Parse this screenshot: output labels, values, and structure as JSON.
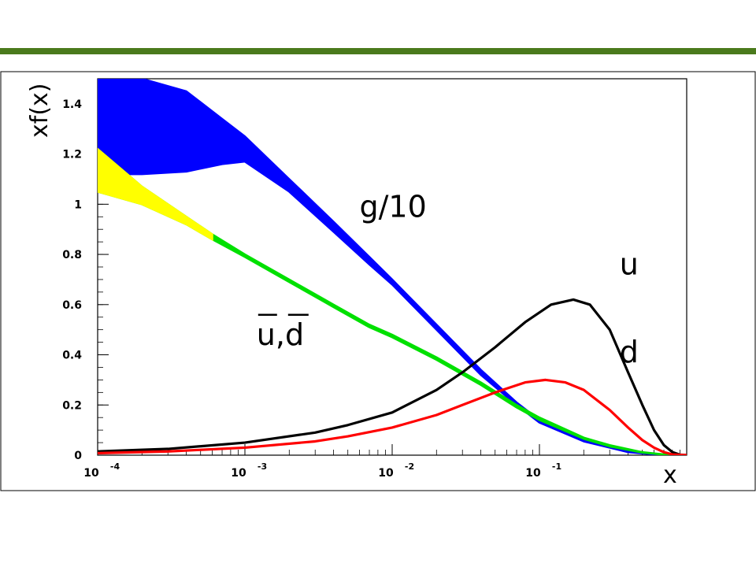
{
  "slide": {
    "header_bar_color": "#4a7a1c"
  },
  "chart_data": {
    "type": "line",
    "x_scale": "log",
    "xlim": [
      0.0001,
      1
    ],
    "ylim": [
      0,
      1.5
    ],
    "grid": false,
    "xlabel": "x",
    "ylabel": "xf(x)",
    "x_ticks": [
      {
        "value": 0.0001,
        "base": "10",
        "exp": "-4"
      },
      {
        "value": 0.001,
        "base": "10",
        "exp": "-3"
      },
      {
        "value": 0.01,
        "base": "10",
        "exp": "-2"
      },
      {
        "value": 0.1,
        "base": "10",
        "exp": "-1"
      }
    ],
    "y_ticks": [
      {
        "value": 0,
        "label": "0"
      },
      {
        "value": 0.2,
        "label": "0.2"
      },
      {
        "value": 0.4,
        "label": "0.4"
      },
      {
        "value": 0.6,
        "label": "0.6"
      },
      {
        "value": 0.8,
        "label": "0.8"
      },
      {
        "value": 1,
        "label": "1"
      },
      {
        "value": 1.2,
        "label": "1.2"
      },
      {
        "value": 1.4,
        "label": "1.4"
      }
    ],
    "series": [
      {
        "name": "g/10",
        "color": "#0000ff",
        "style": "band",
        "x": [
          0.0001,
          0.0002,
          0.0004,
          0.0007,
          0.001,
          0.002,
          0.004,
          0.007,
          0.01,
          0.02,
          0.04,
          0.07,
          0.1,
          0.2,
          0.4,
          0.6,
          0.8,
          1
        ],
        "upper": [
          1.5,
          1.5,
          1.45,
          1.34,
          1.27,
          1.1,
          0.93,
          0.79,
          0.7,
          0.52,
          0.34,
          0.21,
          0.14,
          0.06,
          0.015,
          0.004,
          0.001,
          0
        ],
        "lower": [
          1.12,
          1.12,
          1.13,
          1.16,
          1.17,
          1.05,
          0.89,
          0.76,
          0.68,
          0.5,
          0.32,
          0.2,
          0.13,
          0.055,
          0.012,
          0.003,
          0.001,
          0
        ]
      },
      {
        "name": "u,d",
        "color": "#00e000",
        "low_x_color": "#ffff00",
        "low_x_until": 0.0006,
        "style": "band",
        "x": [
          0.0001,
          0.0002,
          0.0004,
          0.0006,
          0.001,
          0.002,
          0.004,
          0.007,
          0.01,
          0.02,
          0.04,
          0.07,
          0.1,
          0.2,
          0.3,
          0.5,
          0.7,
          1
        ],
        "upper": [
          1.22,
          1.07,
          0.95,
          0.88,
          0.8,
          0.7,
          0.6,
          0.52,
          0.48,
          0.39,
          0.29,
          0.2,
          0.15,
          0.07,
          0.04,
          0.012,
          0.003,
          0
        ],
        "lower": [
          1.05,
          1.0,
          0.92,
          0.86,
          0.79,
          0.69,
          0.59,
          0.51,
          0.47,
          0.38,
          0.28,
          0.19,
          0.14,
          0.065,
          0.035,
          0.01,
          0.002,
          0
        ]
      },
      {
        "name": "u",
        "color": "#000000",
        "style": "line",
        "x": [
          0.0001,
          0.0003,
          0.001,
          0.003,
          0.005,
          0.01,
          0.02,
          0.03,
          0.05,
          0.08,
          0.12,
          0.17,
          0.22,
          0.3,
          0.4,
          0.5,
          0.6,
          0.7,
          0.8,
          0.9,
          1
        ],
        "y": [
          0.015,
          0.025,
          0.05,
          0.09,
          0.12,
          0.17,
          0.26,
          0.33,
          0.43,
          0.53,
          0.6,
          0.62,
          0.6,
          0.5,
          0.33,
          0.2,
          0.1,
          0.04,
          0.012,
          0.002,
          0
        ]
      },
      {
        "name": "d",
        "color": "#ff0000",
        "style": "line",
        "x": [
          0.0001,
          0.0003,
          0.001,
          0.003,
          0.005,
          0.01,
          0.02,
          0.03,
          0.05,
          0.08,
          0.11,
          0.15,
          0.2,
          0.3,
          0.4,
          0.5,
          0.6,
          0.7,
          0.8,
          1
        ],
        "y": [
          0.008,
          0.015,
          0.03,
          0.055,
          0.075,
          0.11,
          0.16,
          0.2,
          0.25,
          0.29,
          0.3,
          0.29,
          0.26,
          0.18,
          0.11,
          0.06,
          0.03,
          0.012,
          0.003,
          0
        ]
      }
    ],
    "annotations": [
      {
        "text": "g/10",
        "x": 0.006,
        "y": 0.95
      },
      {
        "text": "u",
        "x": 0.35,
        "y": 0.72
      },
      {
        "text": "d",
        "x": 0.35,
        "y": 0.37
      },
      {
        "text": "u,d",
        "x": 0.0012,
        "y": 0.44,
        "overline": true
      }
    ]
  }
}
